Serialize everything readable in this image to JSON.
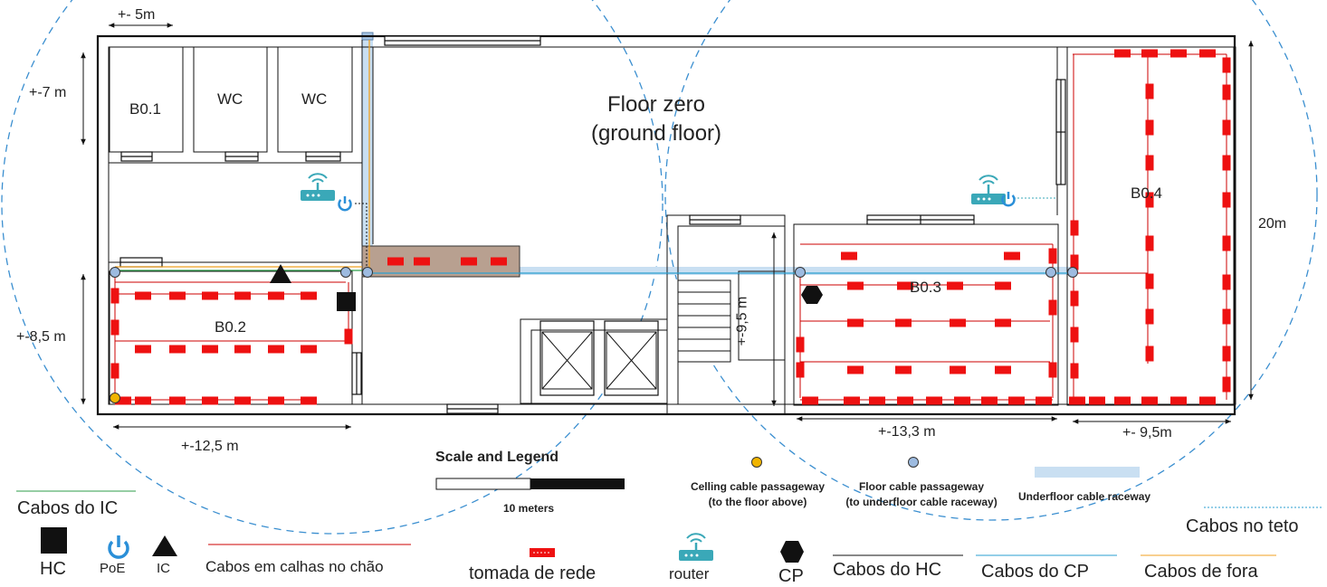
{
  "plan": {
    "title_line1": "Floor zero",
    "title_line2": "(ground floor)",
    "rooms": {
      "b01": "B0.1",
      "wc1": "WC",
      "wc2": "WC",
      "b02": "B0.2",
      "b03": "B0.3",
      "b04": "B0.4"
    },
    "dimensions": {
      "top_width": "+- 5m",
      "left_upper_height": "+-7 m",
      "left_lower_height": "+-8,5 m",
      "bottom_left_width": "+-12,5 m",
      "stair_height": "+-9,5 m",
      "bottom_mid_width": "+-13,3 m",
      "bottom_right_width": "+- 9,5m",
      "right_height": "20m"
    }
  },
  "scale_legend": {
    "title": "Scale and Legend",
    "bar_label": "10 meters",
    "ceiling_passage_line1": "Celling cable passageway",
    "ceiling_passage_line2": "(to the floor above)",
    "floor_passage_line1": "Floor cable passageway",
    "floor_passage_line2": "(to underfloor cable raceway)",
    "underfloor_raceway": "Underfloor cable raceway"
  },
  "legend": {
    "cabos_ic": "Cabos do IC",
    "hc": "HC",
    "poe": "PoE",
    "ic": "IC",
    "cabos_calhas": "Cabos em calhas no chão",
    "tomada": "tomada de rede",
    "router": "router",
    "cp": "CP",
    "cabos_hc": "Cabos do HC",
    "cabos_cp": "Cabos do CP",
    "cabos_fora": "Cabos de fora",
    "cabos_teto": "Cabos no teto"
  },
  "colors": {
    "wall": "#111111",
    "outlet": "#ee1111",
    "floor_cable": "#cc0000",
    "raceway": "#c9dff2",
    "passage_floor": "#9dbbe0",
    "passage_ceiling": "#f0b400",
    "wifi_range": "#3b8fd0",
    "router": "#3aa8b8",
    "poe": "#2a8fd8",
    "cable_ic": "#2e9e4a",
    "cable_cp": "#2a9fd0",
    "cable_outside": "#f0a020"
  }
}
